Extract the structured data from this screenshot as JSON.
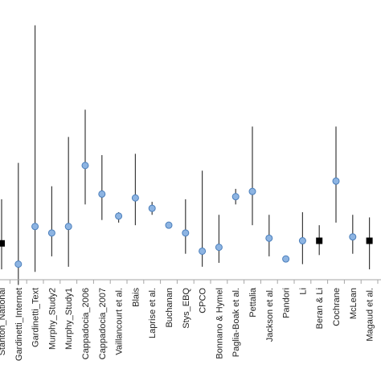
{
  "chart_data": {
    "type": "scatter",
    "title": "",
    "xlabel": "",
    "ylabel": "",
    "ylim": [
      0,
      100
    ],
    "grid": false,
    "legend": "none",
    "categories": [
      "Stanton_National",
      "Gardinetti_Internet",
      "Gardinetti_Text",
      "Murphy_Study2",
      "Murphy_Study1",
      "Cappadocia_2006",
      "Cappadocia_2007",
      "Vaillancourt et al.",
      "Blais",
      "Laprise et al.",
      "Buchanan",
      "Stys_EBQ",
      "CPCO",
      "Bonnano & Hymel",
      "Paglia-Boak et al.",
      "Pettalia",
      "Jackson et al.",
      "Pandori",
      "Li",
      "Beran & Li",
      "Cochrane",
      "McLean",
      "Magaud et al."
    ],
    "points": [
      {
        "y": 14,
        "low": 4,
        "high": 31,
        "marker": "square"
      },
      {
        "y": 6,
        "low": -2,
        "high": 45,
        "marker": "circle"
      },
      {
        "y": 20.5,
        "low": 3,
        "high": 98,
        "marker": "circle"
      },
      {
        "y": 18,
        "low": 9,
        "high": 36,
        "marker": "circle"
      },
      {
        "y": 20.5,
        "low": 5,
        "high": 55,
        "marker": "circle"
      },
      {
        "y": 44,
        "low": 29,
        "high": 65.5,
        "marker": "circle"
      },
      {
        "y": 33,
        "low": 23,
        "high": 48,
        "marker": "circle"
      },
      {
        "y": 24.5,
        "low": 22,
        "high": 26,
        "marker": "circle"
      },
      {
        "y": 31.5,
        "low": 21,
        "high": 48.5,
        "marker": "circle"
      },
      {
        "y": 27.5,
        "low": 25,
        "high": 30,
        "marker": "circle"
      },
      {
        "y": 21,
        "low": 21,
        "high": 21,
        "marker": "circle"
      },
      {
        "y": 18,
        "low": 10,
        "high": 31,
        "marker": "circle"
      },
      {
        "y": 11,
        "low": 5,
        "high": 42,
        "marker": "circle"
      },
      {
        "y": 12.5,
        "low": 6.5,
        "high": 25,
        "marker": "circle"
      },
      {
        "y": 32,
        "low": 29,
        "high": 35,
        "marker": "circle"
      },
      {
        "y": 34,
        "low": 21,
        "high": 59,
        "marker": "circle"
      },
      {
        "y": 16,
        "low": 9,
        "high": 25,
        "marker": "circle"
      },
      {
        "y": 8,
        "low": 8,
        "high": 8,
        "marker": "circle"
      },
      {
        "y": 15,
        "low": 6,
        "high": 26,
        "marker": "circle"
      },
      {
        "y": 15,
        "low": 9.5,
        "high": 21,
        "marker": "square"
      },
      {
        "y": 38,
        "low": 22,
        "high": 59,
        "marker": "circle"
      },
      {
        "y": 16.5,
        "low": 10,
        "high": 25,
        "marker": "circle"
      },
      {
        "y": 15,
        "low": 4,
        "high": 24,
        "marker": "square"
      }
    ],
    "colors": {
      "circle_fill": "#8db4e2",
      "circle_stroke": "#4a7ebb",
      "square_fill": "#000000",
      "whisker": "#3a3a3a",
      "axis": "#a6a6a6"
    }
  }
}
